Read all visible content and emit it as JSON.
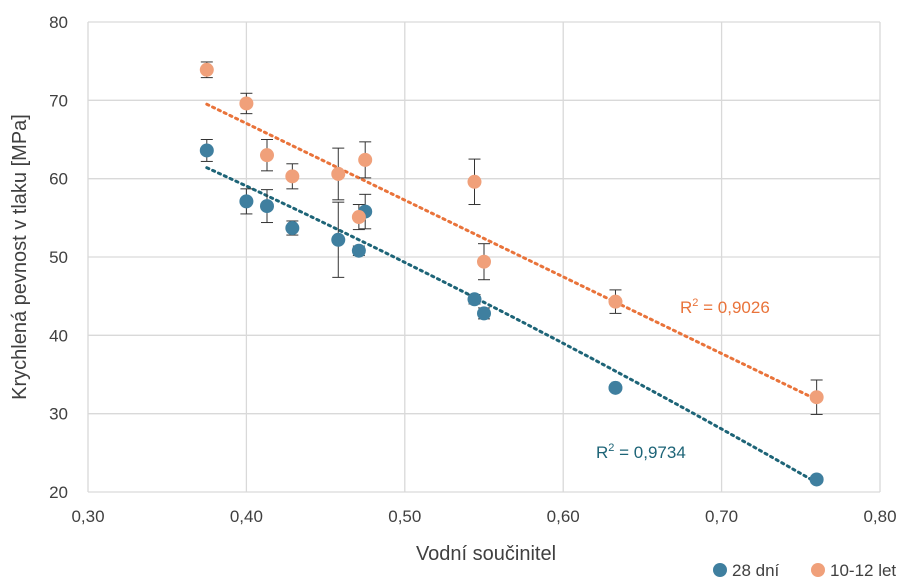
{
  "chart_data": {
    "type": "scatter",
    "title": "",
    "xlabel": "Vodní součinitel",
    "ylabel": "Krychlená pevnost v tlaku [MPa]",
    "xlim": [
      0.3,
      0.8
    ],
    "ylim": [
      20,
      80
    ],
    "x_ticks": [
      "0,30",
      "0,40",
      "0,50",
      "0,60",
      "0,70",
      "0,80"
    ],
    "y_ticks": [
      "20",
      "30",
      "40",
      "50",
      "60",
      "70",
      "80"
    ],
    "grid": true,
    "legend_position": "bottom-right",
    "series": [
      {
        "name": "28 dní",
        "color": "#3f7f9f",
        "trend_color": "#1d6477",
        "x": [
          0.375,
          0.4,
          0.413,
          0.429,
          0.458,
          0.471,
          0.475,
          0.544,
          0.55,
          0.633,
          0.76
        ],
        "y": [
          63.6,
          57.1,
          56.5,
          53.7,
          52.2,
          50.8,
          55.8,
          44.6,
          42.8,
          33.3,
          21.6
        ],
        "err": [
          1.4,
          1.6,
          2.1,
          0.9,
          4.8,
          0.6,
          2.2,
          0.6,
          0.7,
          0.4,
          0.4
        ],
        "trend": {
          "type": "poly2",
          "x0": 0.375,
          "y0": 61.4,
          "x1": 0.76,
          "y1": 21.2,
          "xm": 0.5675,
          "ym": 42.4
        },
        "r2_label": "R",
        "r2_sup": "2",
        "r2_value": " = 0,9734"
      },
      {
        "name": "10-12 let",
        "color": "#f0a07a",
        "trend_color": "#e9733a",
        "x": [
          0.375,
          0.4,
          0.413,
          0.429,
          0.458,
          0.471,
          0.475,
          0.544,
          0.55,
          0.633,
          0.76
        ],
        "y": [
          73.9,
          69.6,
          63.0,
          60.3,
          60.6,
          55.1,
          62.4,
          59.6,
          49.4,
          44.3,
          32.1
        ],
        "err": [
          1.0,
          1.3,
          2.0,
          1.6,
          3.3,
          1.6,
          2.3,
          2.9,
          2.3,
          1.5,
          2.2
        ],
        "trend": {
          "type": "linear",
          "x0": 0.375,
          "y0": 69.5,
          "x1": 0.76,
          "y1": 31.8
        },
        "r2_label": "R",
        "r2_sup": "2",
        "r2_value": " = 0,9026"
      }
    ]
  }
}
